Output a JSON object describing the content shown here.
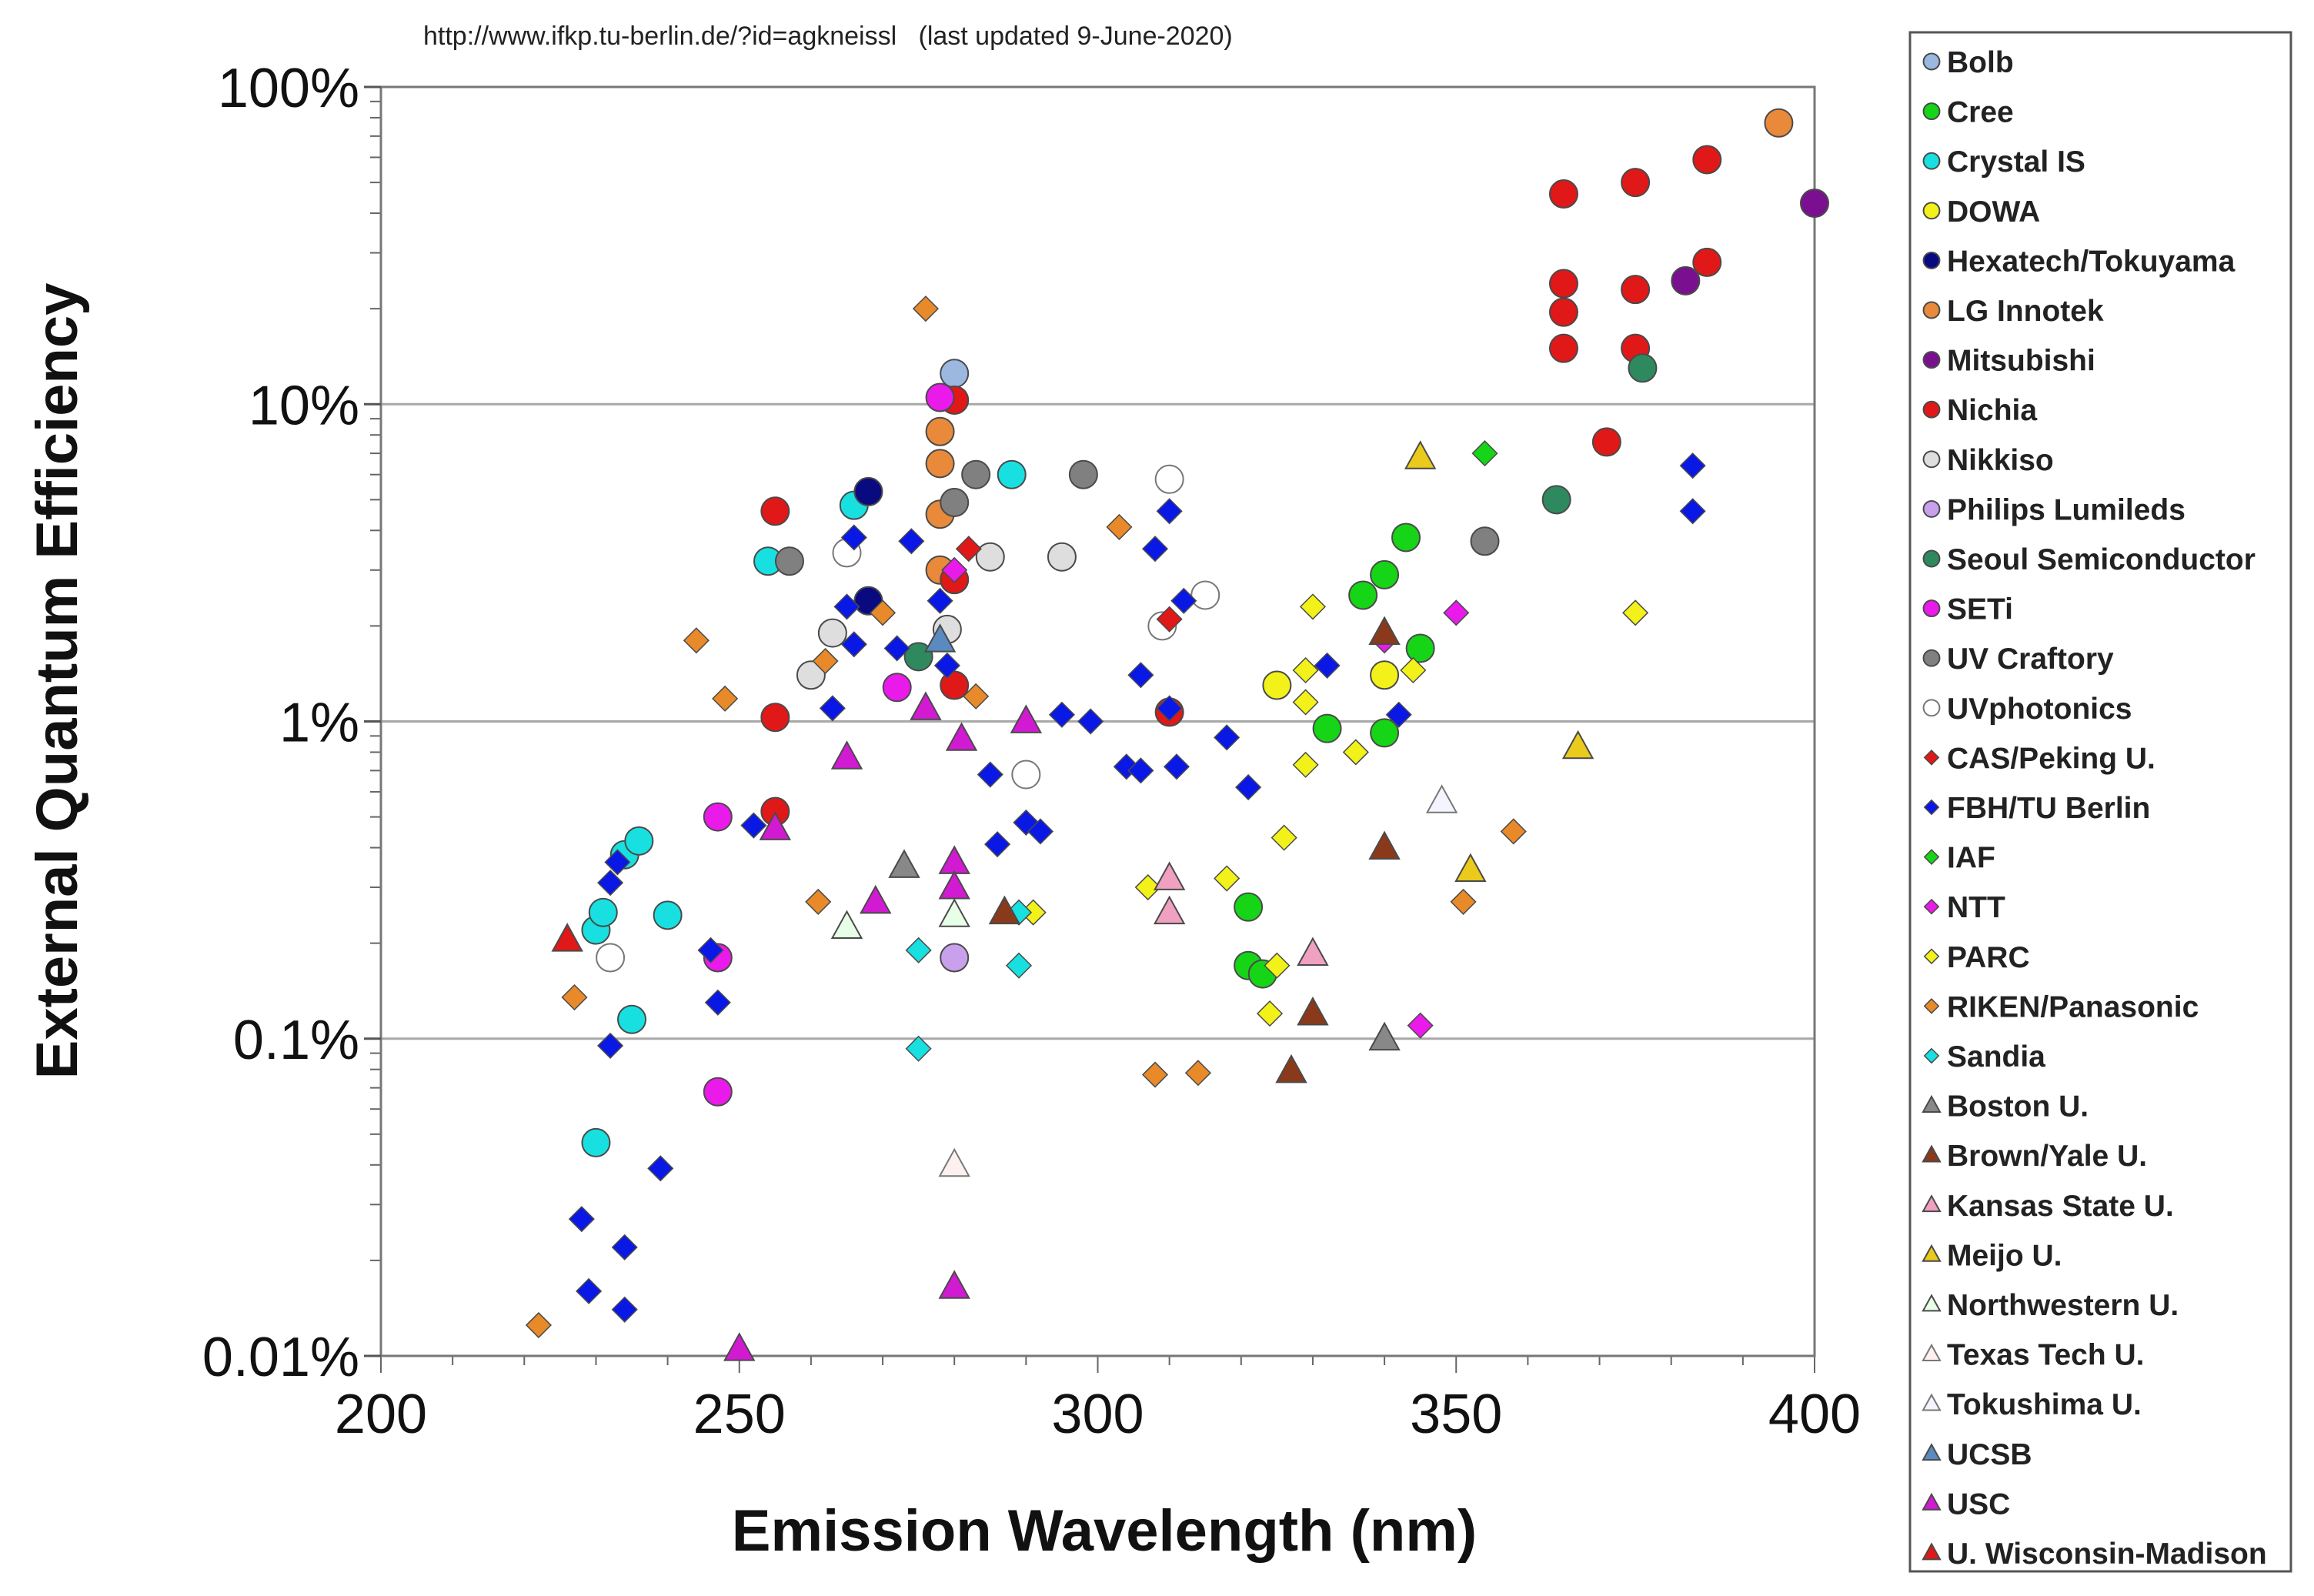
{
  "chart_data": {
    "type": "scatter",
    "source_note": "http://www.ifkp.tu-berlin.de/?id=agkneissl   (last updated 9-June-2020)",
    "xlabel": "Emission Wavelength (nm)",
    "ylabel": "External Quantum Efficiency",
    "xlim": [
      200,
      400
    ],
    "ylim": [
      0.01,
      100
    ],
    "y_scale": "log",
    "x_ticks": [
      200,
      250,
      300,
      350,
      400
    ],
    "x_tick_labels": [
      "200",
      "250",
      "300",
      "350",
      "400"
    ],
    "y_ticks": [
      0.01,
      0.1,
      1,
      10,
      100
    ],
    "y_tick_labels": [
      "0.01%",
      "0.1%",
      "1%",
      "10%",
      "100%"
    ],
    "grid": "horizontal major lines",
    "legend_position": "right",
    "series": [
      {
        "name": "Bolb",
        "marker": "circle",
        "fill": "#9ab8e0",
        "points": [
          [
            280,
            12.5
          ]
        ]
      },
      {
        "name": "Cree",
        "marker": "circle",
        "fill": "#16d416",
        "points": [
          [
            321,
            0.26
          ],
          [
            321,
            0.17
          ],
          [
            323,
            0.16
          ],
          [
            332,
            0.95
          ],
          [
            337,
            2.5
          ],
          [
            340,
            2.9
          ],
          [
            340,
            0.92
          ],
          [
            343,
            3.8
          ],
          [
            345,
            1.7
          ]
        ]
      },
      {
        "name": "Crystal IS",
        "marker": "circle",
        "fill": "#18e0e0",
        "points": [
          [
            230,
            0.22
          ],
          [
            231,
            0.25
          ],
          [
            234,
            0.38
          ],
          [
            236,
            0.42
          ],
          [
            240,
            0.245
          ],
          [
            235,
            0.115
          ],
          [
            230,
            0.047
          ],
          [
            254,
            3.2
          ],
          [
            266,
            4.8
          ],
          [
            288,
            6.0
          ]
        ]
      },
      {
        "name": "DOWA",
        "marker": "circle",
        "fill": "#f2f21a",
        "points": [
          [
            325,
            1.3
          ],
          [
            340,
            1.4
          ]
        ]
      },
      {
        "name": "Hexatech/Tokuyama",
        "marker": "circle",
        "fill": "#0a0a80",
        "points": [
          [
            268,
            5.3
          ],
          [
            268,
            2.4
          ]
        ]
      },
      {
        "name": "LG Innotek",
        "marker": "circle",
        "fill": "#e88a3a",
        "points": [
          [
            278,
            8.2
          ],
          [
            278,
            6.5
          ],
          [
            278,
            4.5
          ],
          [
            278,
            3.0
          ],
          [
            395,
            77
          ]
        ]
      },
      {
        "name": "Mitsubishi",
        "marker": "circle",
        "fill": "#7a1090",
        "points": [
          [
            382,
            24.5
          ],
          [
            400,
            43
          ]
        ]
      },
      {
        "name": "Nichia",
        "marker": "circle",
        "fill": "#e01818",
        "points": [
          [
            255,
            4.6
          ],
          [
            255,
            1.03
          ],
          [
            255,
            0.52
          ],
          [
            280,
            10.3
          ],
          [
            280,
            2.8
          ],
          [
            280,
            1.3
          ],
          [
            310,
            1.07
          ],
          [
            365,
            46
          ],
          [
            365,
            24
          ],
          [
            365,
            19.5
          ],
          [
            365,
            15
          ],
          [
            375,
            50
          ],
          [
            375,
            23
          ],
          [
            375,
            15
          ],
          [
            371,
            7.6
          ],
          [
            385,
            59
          ],
          [
            385,
            28
          ]
        ]
      },
      {
        "name": "Nikkiso",
        "marker": "circle",
        "fill": "#dedede",
        "points": [
          [
            260,
            1.4
          ],
          [
            263,
            1.9
          ],
          [
            279,
            1.95
          ],
          [
            285,
            3.3
          ],
          [
            295,
            3.3
          ]
        ]
      },
      {
        "name": "Philips Lumileds",
        "marker": "circle",
        "fill": "#c8a0ec",
        "points": [
          [
            280,
            0.18
          ]
        ]
      },
      {
        "name": "Seoul Semiconductor",
        "marker": "circle",
        "fill": "#2e8a5e",
        "points": [
          [
            275,
            1.6
          ],
          [
            364,
            5.0
          ],
          [
            376,
            13
          ]
        ]
      },
      {
        "name": "SETi",
        "marker": "circle",
        "fill": "#ea1aea",
        "points": [
          [
            247,
            0.5
          ],
          [
            247,
            0.18
          ],
          [
            247,
            0.068
          ],
          [
            272,
            1.28
          ],
          [
            278,
            10.5
          ]
        ]
      },
      {
        "name": "UV Craftory",
        "marker": "circle",
        "fill": "#808080",
        "points": [
          [
            257,
            3.2
          ],
          [
            280,
            4.9
          ],
          [
            283,
            6.0
          ],
          [
            298,
            6.0
          ],
          [
            354,
            3.7
          ]
        ]
      },
      {
        "name": "UVphotonics",
        "marker": "circle",
        "fill": "#ffffff",
        "points": [
          [
            232,
            0.18
          ],
          [
            265,
            3.4
          ],
          [
            290,
            0.68
          ],
          [
            309,
            2.0
          ],
          [
            310,
            5.8
          ],
          [
            315,
            2.5
          ]
        ]
      },
      {
        "name": "CAS/Peking U.",
        "marker": "diamond",
        "fill": "#e01818",
        "points": [
          [
            282,
            3.5
          ],
          [
            310,
            2.1
          ]
        ]
      },
      {
        "name": "FBH/TU Berlin",
        "marker": "diamond",
        "fill": "#0a18e6",
        "points": [
          [
            228,
            0.027
          ],
          [
            229,
            0.016
          ],
          [
            232,
            0.095
          ],
          [
            232,
            0.31
          ],
          [
            233,
            0.36
          ],
          [
            234,
            0.022
          ],
          [
            234,
            0.014
          ],
          [
            239,
            0.039
          ],
          [
            246,
            0.19
          ],
          [
            247,
            0.13
          ],
          [
            252,
            0.47
          ],
          [
            263,
            1.1
          ],
          [
            265,
            2.3
          ],
          [
            266,
            3.8
          ],
          [
            266,
            1.75
          ],
          [
            274,
            3.7
          ],
          [
            272,
            1.7
          ],
          [
            278,
            2.4
          ],
          [
            279,
            1.5
          ],
          [
            285,
            0.68
          ],
          [
            286,
            0.41
          ],
          [
            290,
            0.48
          ],
          [
            292,
            0.45
          ],
          [
            295,
            1.05
          ],
          [
            299,
            1.0
          ],
          [
            304,
            0.72
          ],
          [
            306,
            0.7
          ],
          [
            306,
            1.4
          ],
          [
            308,
            3.5
          ],
          [
            310,
            4.6
          ],
          [
            310,
            1.1
          ],
          [
            311,
            0.72
          ],
          [
            312,
            2.4
          ],
          [
            318,
            0.89
          ],
          [
            321,
            0.62
          ],
          [
            332,
            1.5
          ],
          [
            342,
            1.05
          ],
          [
            383,
            6.4
          ],
          [
            383,
            4.6
          ]
        ]
      },
      {
        "name": "IAF",
        "marker": "diamond",
        "fill": "#16d416",
        "points": [
          [
            354,
            7.0
          ]
        ]
      },
      {
        "name": "NTT",
        "marker": "diamond",
        "fill": "#ea1aea",
        "points": [
          [
            280,
            3.0
          ],
          [
            340,
            1.8
          ],
          [
            345,
            0.11
          ],
          [
            350,
            2.2
          ]
        ]
      },
      {
        "name": "PARC",
        "marker": "diamond",
        "fill": "#f2f21a",
        "points": [
          [
            291,
            0.25
          ],
          [
            307,
            0.3
          ],
          [
            318,
            0.32
          ],
          [
            324,
            0.12
          ],
          [
            325,
            0.17
          ],
          [
            326,
            0.43
          ],
          [
            329,
            1.45
          ],
          [
            329,
            1.15
          ],
          [
            329,
            0.73
          ],
          [
            330,
            2.3
          ],
          [
            336,
            0.8
          ],
          [
            344,
            1.45
          ],
          [
            375,
            2.2
          ]
        ]
      },
      {
        "name": "RIKEN/Panasonic",
        "marker": "diamond",
        "fill": "#e88a2a",
        "points": [
          [
            222,
            0.0125
          ],
          [
            227,
            0.135
          ],
          [
            244,
            1.8
          ],
          [
            248,
            1.18
          ],
          [
            261,
            0.27
          ],
          [
            262,
            1.55
          ],
          [
            270,
            2.2
          ],
          [
            276,
            20
          ],
          [
            283,
            1.2
          ],
          [
            303,
            4.1
          ],
          [
            308,
            0.077
          ],
          [
            314,
            0.078
          ],
          [
            351,
            0.27
          ],
          [
            358,
            0.45
          ]
        ]
      },
      {
        "name": "Sandia",
        "marker": "diamond",
        "fill": "#18e0e0",
        "points": [
          [
            275,
            0.19
          ],
          [
            275,
            0.093
          ],
          [
            289,
            0.17
          ],
          [
            289,
            0.25
          ]
        ]
      },
      {
        "name": "Boston U.",
        "marker": "triangle",
        "fill": "#888888",
        "points": [
          [
            273,
            0.35
          ],
          [
            340,
            0.1
          ]
        ]
      },
      {
        "name": "Brown/Yale U.",
        "marker": "triangle",
        "fill": "#8a3a1a",
        "points": [
          [
            287,
            0.25
          ],
          [
            327,
            0.079
          ],
          [
            330,
            0.12
          ],
          [
            340,
            1.9
          ],
          [
            340,
            0.4
          ]
        ]
      },
      {
        "name": "Kansas State U.",
        "marker": "triangle",
        "fill": "#f0a0c0",
        "points": [
          [
            310,
            0.32
          ],
          [
            310,
            0.25
          ],
          [
            330,
            0.185
          ]
        ]
      },
      {
        "name": "Meijo U.",
        "marker": "triangle",
        "fill": "#eaca1a",
        "points": [
          [
            345,
            6.8
          ],
          [
            352,
            0.34
          ],
          [
            367,
            0.83
          ]
        ]
      },
      {
        "name": "Northwestern U.",
        "marker": "triangle",
        "fill": "#e6ffe6",
        "points": [
          [
            265,
            0.225
          ],
          [
            280,
            0.245
          ]
        ]
      },
      {
        "name": "Texas Tech U.",
        "marker": "triangle",
        "fill": "#fff0f0",
        "points": [
          [
            280,
            0.04
          ]
        ]
      },
      {
        "name": "Tokushima U.",
        "marker": "triangle",
        "fill": "#f4f4ff",
        "points": [
          [
            348,
            0.56
          ]
        ]
      },
      {
        "name": "UCSB",
        "marker": "triangle",
        "fill": "#5a8ac0",
        "points": [
          [
            278,
            1.8
          ]
        ]
      },
      {
        "name": "USC",
        "marker": "triangle",
        "fill": "#d21ad2",
        "points": [
          [
            250,
            0.0105
          ],
          [
            255,
            0.46
          ],
          [
            265,
            0.77
          ],
          [
            269,
            0.27
          ],
          [
            276,
            1.1
          ],
          [
            280,
            0.36
          ],
          [
            280,
            0.3
          ],
          [
            280,
            0.0165
          ],
          [
            281,
            0.88
          ],
          [
            290,
            1.0
          ]
        ]
      },
      {
        "name": "U. Wisconsin-Madison",
        "marker": "triangle",
        "fill": "#e01818",
        "points": [
          [
            226,
            0.205
          ]
        ]
      }
    ]
  }
}
